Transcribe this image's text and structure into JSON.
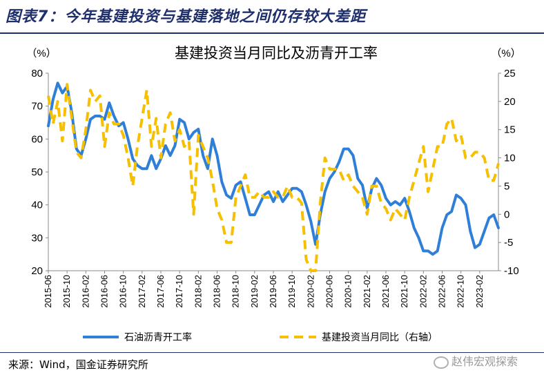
{
  "figure": {
    "title": "图表7：今年基建投资与基建落地之间仍存较大差距",
    "source": "来源：Wind，国金证券研究所",
    "watermark": "赵伟宏观探索"
  },
  "chart_data": {
    "type": "line",
    "title": "基建投资当月同比及沥青开工率",
    "left_axis": {
      "unit_label": "（%）",
      "range": [
        20,
        80
      ],
      "ticks": [
        20,
        30,
        40,
        50,
        60,
        70,
        80
      ]
    },
    "right_axis": {
      "unit_label": "（%）",
      "range": [
        -10,
        25
      ],
      "ticks": [
        -10,
        -5,
        0,
        5,
        10,
        15,
        20,
        25
      ]
    },
    "x_start": "2015-06",
    "x_end": "2023-06",
    "x_ticks": [
      "2015-06",
      "2015-10",
      "2016-02",
      "2016-06",
      "2016-10",
      "2017-02",
      "2017-06",
      "2017-10",
      "2018-02",
      "2018-06",
      "2018-10",
      "2019-02",
      "2019-06",
      "2019-10",
      "2020-02",
      "2020-06",
      "2020-10",
      "2021-02",
      "2021-06",
      "2021-10",
      "2022-02",
      "2022-06",
      "2022-10",
      "2023-02"
    ],
    "grid": false,
    "legend_position": "bottom",
    "series": [
      {
        "name": "石油沥青开工率",
        "axis": "left",
        "color": "#2f7fd8",
        "style": "solid",
        "points": [
          [
            "2015-06",
            64
          ],
          [
            "2015-07",
            72
          ],
          [
            "2015-08",
            77
          ],
          [
            "2015-09",
            74
          ],
          [
            "2015-10",
            76
          ],
          [
            "2015-11",
            68
          ],
          [
            "2015-12",
            57
          ],
          [
            "2016-01",
            55
          ],
          [
            "2016-02",
            60
          ],
          [
            "2016-03",
            66
          ],
          [
            "2016-04",
            67
          ],
          [
            "2016-05",
            67
          ],
          [
            "2016-06",
            66
          ],
          [
            "2016-07",
            71
          ],
          [
            "2016-08",
            67
          ],
          [
            "2016-09",
            64
          ],
          [
            "2016-10",
            65
          ],
          [
            "2016-11",
            60
          ],
          [
            "2016-12",
            54
          ],
          [
            "2017-01",
            52
          ],
          [
            "2017-02",
            51
          ],
          [
            "2017-03",
            51
          ],
          [
            "2017-04",
            55
          ],
          [
            "2017-05",
            51
          ],
          [
            "2017-06",
            54
          ],
          [
            "2017-07",
            58
          ],
          [
            "2017-08",
            55
          ],
          [
            "2017-09",
            58
          ],
          [
            "2017-10",
            66
          ],
          [
            "2017-11",
            65
          ],
          [
            "2017-12",
            60
          ],
          [
            "2018-01",
            62
          ],
          [
            "2018-02",
            63
          ],
          [
            "2018-03",
            55
          ],
          [
            "2018-04",
            51
          ],
          [
            "2018-05",
            60
          ],
          [
            "2018-06",
            55
          ],
          [
            "2018-07",
            47
          ],
          [
            "2018-08",
            43
          ],
          [
            "2018-09",
            42
          ],
          [
            "2018-10",
            46
          ],
          [
            "2018-11",
            47
          ],
          [
            "2018-12",
            42
          ],
          [
            "2019-01",
            37
          ],
          [
            "2019-02",
            37
          ],
          [
            "2019-03",
            40
          ],
          [
            "2019-04",
            43
          ],
          [
            "2019-05",
            44
          ],
          [
            "2019-06",
            41
          ],
          [
            "2019-07",
            44
          ],
          [
            "2019-08",
            41
          ],
          [
            "2019-09",
            43
          ],
          [
            "2019-10",
            45
          ],
          [
            "2019-11",
            45
          ],
          [
            "2019-12",
            44
          ],
          [
            "2020-01",
            40
          ],
          [
            "2020-02",
            35
          ],
          [
            "2020-03",
            28
          ],
          [
            "2020-04",
            37
          ],
          [
            "2020-05",
            44
          ],
          [
            "2020-06",
            48
          ],
          [
            "2020-07",
            50
          ],
          [
            "2020-08",
            53
          ],
          [
            "2020-09",
            57
          ],
          [
            "2020-10",
            57
          ],
          [
            "2020-11",
            55
          ],
          [
            "2020-12",
            48
          ],
          [
            "2021-01",
            46
          ],
          [
            "2021-02",
            39
          ],
          [
            "2021-03",
            45
          ],
          [
            "2021-04",
            48
          ],
          [
            "2021-05",
            46
          ],
          [
            "2021-06",
            42
          ],
          [
            "2021-07",
            40
          ],
          [
            "2021-08",
            41
          ],
          [
            "2021-09",
            40
          ],
          [
            "2021-10",
            42
          ],
          [
            "2021-11",
            38
          ],
          [
            "2021-12",
            33
          ],
          [
            "2022-01",
            30
          ],
          [
            "2022-02",
            26
          ],
          [
            "2022-03",
            26
          ],
          [
            "2022-04",
            25
          ],
          [
            "2022-05",
            26
          ],
          [
            "2022-06",
            33
          ],
          [
            "2022-07",
            37
          ],
          [
            "2022-08",
            38
          ],
          [
            "2022-09",
            43
          ],
          [
            "2022-10",
            42
          ],
          [
            "2022-11",
            40
          ],
          [
            "2022-12",
            32
          ],
          [
            "2023-01",
            27
          ],
          [
            "2023-02",
            28
          ],
          [
            "2023-03",
            32
          ],
          [
            "2023-04",
            36
          ],
          [
            "2023-05",
            37
          ],
          [
            "2023-06",
            33
          ]
        ]
      },
      {
        "name": "基建投资当月同比（右轴）",
        "axis": "right",
        "color": "#f6bf00",
        "style": "dashed",
        "points": [
          [
            "2015-06",
            21
          ],
          [
            "2015-07",
            16
          ],
          [
            "2015-08",
            20
          ],
          [
            "2015-09",
            13
          ],
          [
            "2015-10",
            23
          ],
          [
            "2015-11",
            17
          ],
          [
            "2015-12",
            11
          ],
          [
            "2016-01",
            10
          ],
          [
            "2016-02",
            15
          ],
          [
            "2016-03",
            22
          ],
          [
            "2016-04",
            20
          ],
          [
            "2016-05",
            21
          ],
          [
            "2016-06",
            12
          ],
          [
            "2016-07",
            18
          ],
          [
            "2016-08",
            16
          ],
          [
            "2016-09",
            16
          ],
          [
            "2016-10",
            14
          ],
          [
            "2016-11",
            10
          ],
          [
            "2016-12",
            5
          ],
          [
            "2017-01",
            12
          ],
          [
            "2017-02",
            17
          ],
          [
            "2017-03",
            22
          ],
          [
            "2017-04",
            12
          ],
          [
            "2017-05",
            17
          ],
          [
            "2017-06",
            10
          ],
          [
            "2017-07",
            16
          ],
          [
            "2017-08",
            18
          ],
          [
            "2017-09",
            13
          ],
          [
            "2017-10",
            15
          ],
          [
            "2017-11",
            12
          ],
          [
            "2017-12",
            13
          ],
          [
            "2018-01",
            0
          ],
          [
            "2018-02",
            14
          ],
          [
            "2018-03",
            12
          ],
          [
            "2018-04",
            10
          ],
          [
            "2018-05",
            6
          ],
          [
            "2018-06",
            1
          ],
          [
            "2018-07",
            -1
          ],
          [
            "2018-08",
            -5
          ],
          [
            "2018-09",
            -5
          ],
          [
            "2018-10",
            3
          ],
          [
            "2018-11",
            5
          ],
          [
            "2018-12",
            7
          ],
          [
            "2019-01",
            3
          ],
          [
            "2019-02",
            3
          ],
          [
            "2019-03",
            4
          ],
          [
            "2019-04",
            3
          ],
          [
            "2019-05",
            3
          ],
          [
            "2019-06",
            4
          ],
          [
            "2019-07",
            3
          ],
          [
            "2019-08",
            3
          ],
          [
            "2019-09",
            5
          ],
          [
            "2019-10",
            3
          ],
          [
            "2019-11",
            3
          ],
          [
            "2019-12",
            2
          ],
          [
            "2020-01",
            -8
          ],
          [
            "2020-02",
            -10
          ],
          [
            "2020-03",
            -10
          ],
          [
            "2020-04",
            2
          ],
          [
            "2020-05",
            10
          ],
          [
            "2020-06",
            8
          ],
          [
            "2020-07",
            8
          ],
          [
            "2020-08",
            8
          ],
          [
            "2020-09",
            6
          ],
          [
            "2020-10",
            7
          ],
          [
            "2020-11",
            5
          ],
          [
            "2020-12",
            4
          ],
          [
            "2021-01",
            3
          ],
          [
            "2021-02",
            0
          ],
          [
            "2021-03",
            5
          ],
          [
            "2021-04",
            5
          ],
          [
            "2021-05",
            2
          ],
          [
            "2021-06",
            1
          ],
          [
            "2021-07",
            -1
          ],
          [
            "2021-08",
            1
          ],
          [
            "2021-09",
            0
          ],
          [
            "2021-10",
            -1
          ],
          [
            "2021-11",
            3
          ],
          [
            "2021-12",
            6
          ],
          [
            "2022-01",
            9
          ],
          [
            "2022-02",
            12
          ],
          [
            "2022-03",
            4
          ],
          [
            "2022-04",
            8
          ],
          [
            "2022-05",
            12
          ],
          [
            "2022-06",
            12
          ],
          [
            "2022-07",
            16
          ],
          [
            "2022-08",
            17
          ],
          [
            "2022-09",
            13
          ],
          [
            "2022-10",
            14
          ],
          [
            "2022-11",
            10
          ],
          [
            "2022-12",
            10
          ],
          [
            "2023-01",
            11
          ],
          [
            "2023-02",
            11
          ],
          [
            "2023-03",
            10
          ],
          [
            "2023-04",
            6
          ],
          [
            "2023-05",
            6
          ],
          [
            "2023-06",
            9
          ]
        ]
      }
    ]
  }
}
